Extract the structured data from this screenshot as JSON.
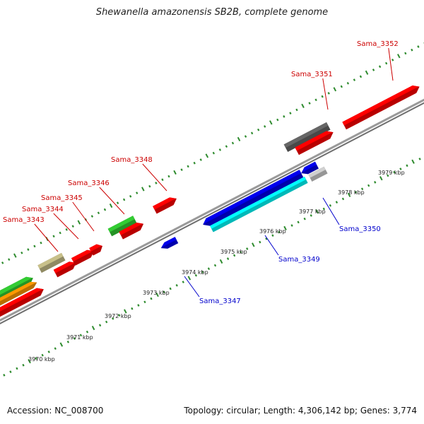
{
  "title": "Shewanella amazonensis SB2B, complete genome",
  "footer": {
    "accession": "Accession: NC_008700",
    "summary": "Topology: circular; Length: 4,306,142 bp; Genes: 3,774"
  },
  "colors": {
    "backbone": "#8a8a8a",
    "ticks": "#2e8b2e",
    "forward_label": "#cc0000",
    "reverse_label": "#0000cc",
    "gene_red": "#ff0000",
    "gene_blue": "#0000ee",
    "gene_cyan": "#00ffff",
    "gene_gray": "#666666",
    "gene_lightgray": "#d0d0d0",
    "gene_olive": "#c8c08a",
    "gene_green": "#33cc33",
    "gene_orange": "#ff9900"
  },
  "scale_labels": [
    "3970 kbp",
    "3971 kbp",
    "3972 kbp",
    "3973 kbp",
    "3974 kbp",
    "3975 kbp",
    "3976 kbp",
    "3977 kbp",
    "3978 kbp",
    "3979 kbp"
  ],
  "gene_labels": [
    {
      "name": "Sama_3343",
      "strand": "forward"
    },
    {
      "name": "Sama_3344",
      "strand": "forward"
    },
    {
      "name": "Sama_3345",
      "strand": "forward"
    },
    {
      "name": "Sama_3346",
      "strand": "forward"
    },
    {
      "name": "Sama_3348",
      "strand": "forward"
    },
    {
      "name": "Sama_3351",
      "strand": "forward"
    },
    {
      "name": "Sama_3352",
      "strand": "forward"
    },
    {
      "name": "Sama_3347",
      "strand": "reverse"
    },
    {
      "name": "Sama_3349",
      "strand": "reverse"
    },
    {
      "name": "Sama_3350",
      "strand": "reverse"
    }
  ]
}
